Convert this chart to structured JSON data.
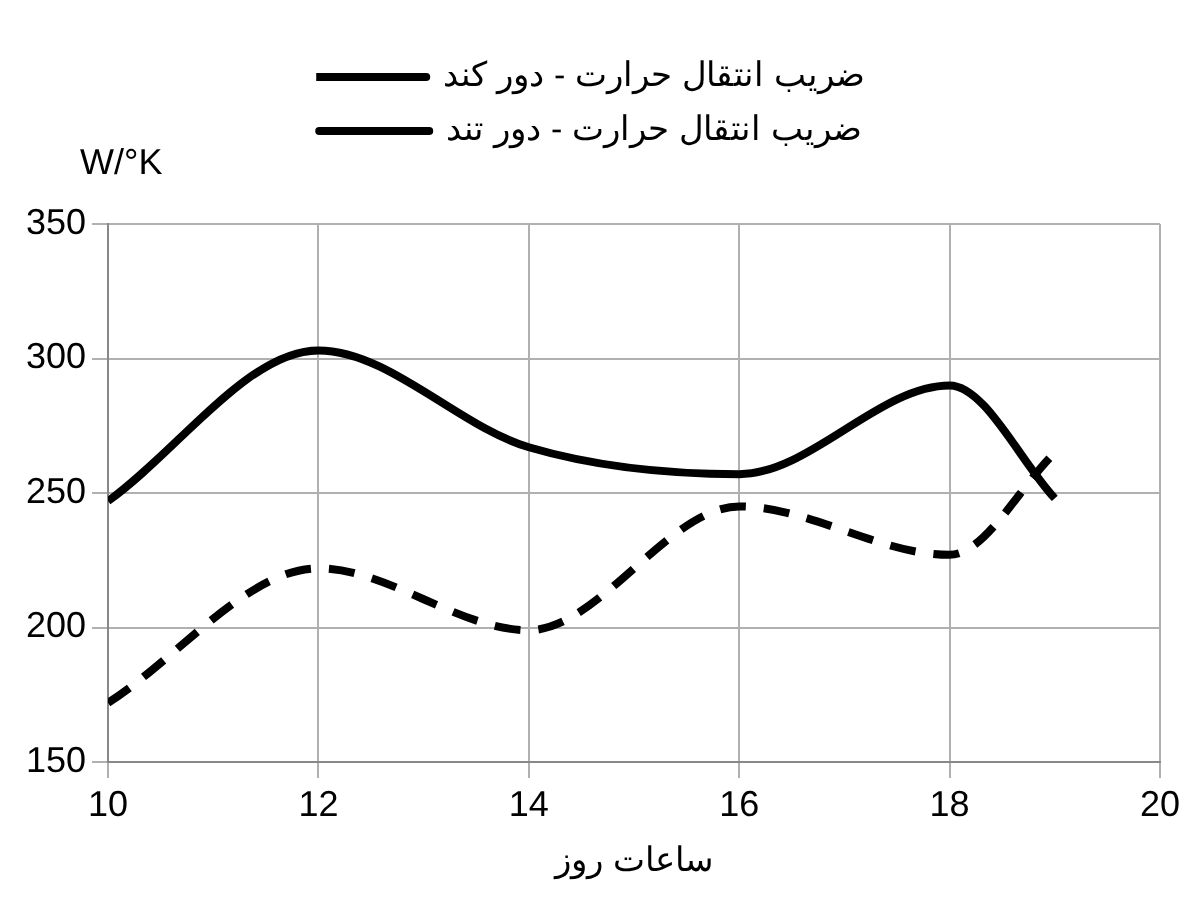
{
  "chart_data": {
    "type": "line",
    "xlabel": "ساعات روز",
    "ylabel": "W/°K",
    "x": [
      10,
      12,
      14,
      16,
      18,
      19
    ],
    "series": [
      {
        "name": "ضریب انتقال حرارت - دور کند",
        "color": "#000000",
        "line_style": "dashed",
        "values": [
          172,
          222,
          199,
          245,
          227,
          265
        ]
      },
      {
        "name": "ضریب انتقال حرارت - دور تند",
        "color": "#000000",
        "line_style": "solid",
        "values": [
          247,
          303,
          267,
          257,
          290,
          248
        ]
      }
    ],
    "xlim": [
      10,
      20
    ],
    "xticks": [
      10,
      12,
      14,
      16,
      18,
      20
    ],
    "ylim": [
      150,
      350
    ],
    "yticks": [
      150,
      200,
      250,
      300,
      350
    ],
    "grid": true,
    "legend": "top",
    "marker": "none"
  }
}
